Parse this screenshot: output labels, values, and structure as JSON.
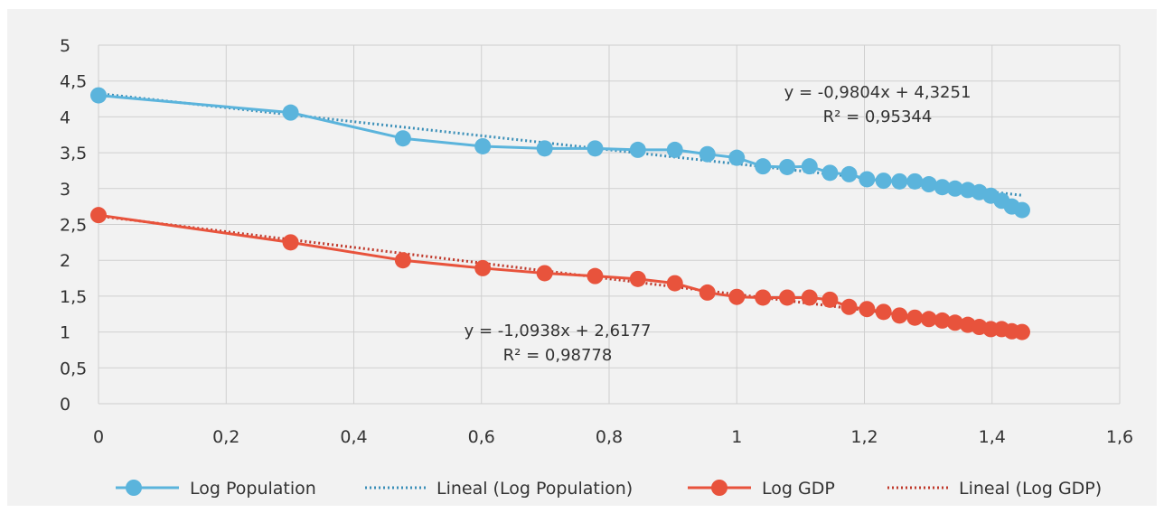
{
  "chart_data": {
    "type": "line",
    "x_ticks": [
      "0",
      "0,2",
      "0,4",
      "0,6",
      "0,8",
      "1",
      "1,2",
      "1,4",
      "1,6"
    ],
    "y_ticks": [
      "0",
      "0,5",
      "1",
      "1,5",
      "2",
      "2,5",
      "3",
      "3,5",
      "4",
      "4,5",
      "5"
    ],
    "xlim": [
      0,
      1.6
    ],
    "ylim": [
      0,
      5
    ],
    "grid": true,
    "legend_position": "bottom",
    "x": [
      0,
      0.301,
      0.477,
      0.602,
      0.699,
      0.778,
      0.845,
      0.903,
      0.954,
      1.0,
      1.041,
      1.079,
      1.114,
      1.146,
      1.176,
      1.204,
      1.23,
      1.255,
      1.279,
      1.301,
      1.322,
      1.342,
      1.362,
      1.38,
      1.398,
      1.415,
      1.431,
      1.447
    ],
    "series": [
      {
        "name": "Log Population",
        "color": "#5bb4dc",
        "values": [
          4.3,
          4.06,
          3.7,
          3.59,
          3.56,
          3.56,
          3.54,
          3.54,
          3.48,
          3.43,
          3.31,
          3.3,
          3.31,
          3.22,
          3.2,
          3.13,
          3.11,
          3.1,
          3.1,
          3.06,
          3.02,
          3.0,
          2.98,
          2.95,
          2.9,
          2.83,
          2.75,
          2.7
        ]
      },
      {
        "name": "Log GDP",
        "color": "#e8533c",
        "values": [
          2.63,
          2.25,
          2.0,
          1.89,
          1.82,
          1.78,
          1.74,
          1.68,
          1.55,
          1.49,
          1.48,
          1.48,
          1.48,
          1.45,
          1.35,
          1.32,
          1.28,
          1.23,
          1.2,
          1.18,
          1.16,
          1.13,
          1.1,
          1.07,
          1.04,
          1.04,
          1.01,
          1.0
        ]
      }
    ],
    "trendlines": [
      {
        "name": "Lineal (Log Population)",
        "color": "#3a8fb8",
        "slope": -0.9804,
        "intercept": 4.3251,
        "x_range": [
          0,
          1.447
        ],
        "equation": "y = -0,9804x + 4,3251",
        "r2": "R² = 0,95344"
      },
      {
        "name": "Lineal (Log GDP)",
        "color": "#c0392b",
        "slope": -1.0938,
        "intercept": 2.6177,
        "x_range": [
          0,
          1.447
        ],
        "equation": "y = -1,0938x + 2,6177",
        "r2": "R² = 0,98778"
      }
    ]
  }
}
